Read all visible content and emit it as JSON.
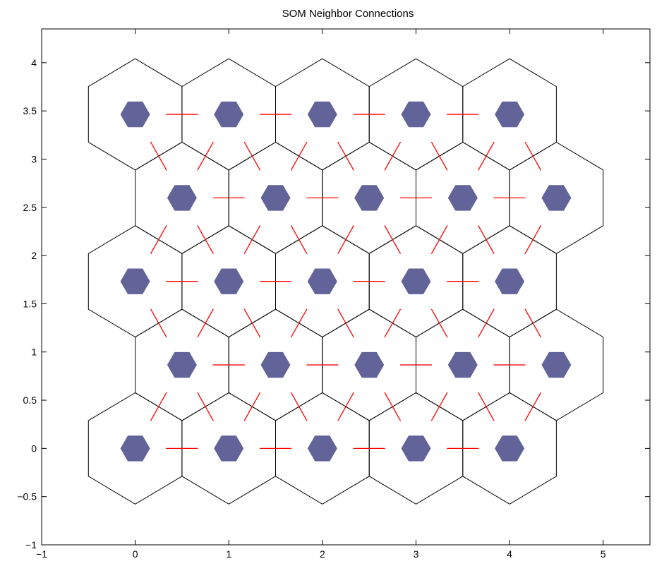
{
  "chart_data": {
    "type": "scatter",
    "title": "SOM Neighbor Connections",
    "xlabel": "",
    "ylabel": "",
    "xlim": [
      -1,
      5.5
    ],
    "ylim": [
      -1,
      4.35
    ],
    "xticks": [
      -1,
      0,
      1,
      2,
      3,
      4,
      5
    ],
    "yticks": [
      -1,
      -0.5,
      0,
      0.5,
      1,
      1.5,
      2,
      2.5,
      3,
      3.5,
      4
    ],
    "xtick_labels": [
      "−1",
      "0",
      "1",
      "2",
      "3",
      "4",
      "5"
    ],
    "ytick_labels": [
      "−1",
      "−0.5",
      "0",
      "0.5",
      "1",
      "1.5",
      "2",
      "2.5",
      "3",
      "3.5",
      "4"
    ],
    "grid": false,
    "neurons": {
      "x": [
        0,
        1,
        2,
        3,
        4,
        0.5,
        1.5,
        2.5,
        3.5,
        4.5,
        0,
        1,
        2,
        3,
        4,
        0.5,
        1.5,
        2.5,
        3.5,
        4.5,
        0,
        1,
        2,
        3,
        4
      ],
      "y": [
        0,
        0,
        0,
        0,
        0,
        0.866,
        0.866,
        0.866,
        0.866,
        0.866,
        1.732,
        1.732,
        1.732,
        1.732,
        1.732,
        2.598,
        2.598,
        2.598,
        2.598,
        2.598,
        3.464,
        3.464,
        3.464,
        3.464,
        3.464
      ],
      "marker": "hexagon",
      "color": "#616399"
    },
    "connections": {
      "color": "#ff0000",
      "pairs": [
        [
          0,
          1
        ],
        [
          1,
          2
        ],
        [
          2,
          3
        ],
        [
          3,
          4
        ],
        [
          5,
          6
        ],
        [
          6,
          7
        ],
        [
          7,
          8
        ],
        [
          8,
          9
        ],
        [
          10,
          11
        ],
        [
          11,
          12
        ],
        [
          12,
          13
        ],
        [
          13,
          14
        ],
        [
          15,
          16
        ],
        [
          16,
          17
        ],
        [
          17,
          18
        ],
        [
          18,
          19
        ],
        [
          20,
          21
        ],
        [
          21,
          22
        ],
        [
          22,
          23
        ],
        [
          23,
          24
        ],
        [
          0,
          5
        ],
        [
          1,
          5
        ],
        [
          1,
          6
        ],
        [
          2,
          6
        ],
        [
          2,
          7
        ],
        [
          3,
          7
        ],
        [
          3,
          8
        ],
        [
          4,
          8
        ],
        [
          4,
          9
        ],
        [
          5,
          10
        ],
        [
          5,
          11
        ],
        [
          6,
          11
        ],
        [
          6,
          12
        ],
        [
          7,
          12
        ],
        [
          7,
          13
        ],
        [
          8,
          13
        ],
        [
          8,
          14
        ],
        [
          9,
          14
        ],
        [
          10,
          15
        ],
        [
          11,
          15
        ],
        [
          11,
          16
        ],
        [
          12,
          16
        ],
        [
          12,
          17
        ],
        [
          13,
          17
        ],
        [
          13,
          18
        ],
        [
          14,
          18
        ],
        [
          14,
          19
        ],
        [
          15,
          20
        ],
        [
          15,
          21
        ],
        [
          16,
          21
        ],
        [
          16,
          22
        ],
        [
          17,
          22
        ],
        [
          17,
          23
        ],
        [
          18,
          23
        ],
        [
          18,
          24
        ],
        [
          19,
          24
        ]
      ]
    },
    "hex_outline_color": "#000000"
  }
}
